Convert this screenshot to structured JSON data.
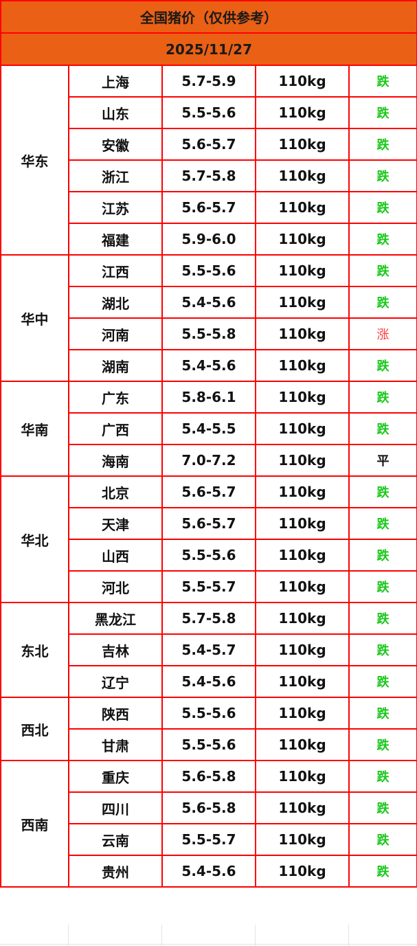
{
  "title": "全国猪价（仅供参考）",
  "date": "2025/11/27",
  "colors": {
    "header_bg": "#ea6014",
    "border": "#ff0000",
    "down": "#19c819",
    "up": "#ff3b3b"
  },
  "regions": [
    {
      "name": "华东",
      "rows": [
        {
          "province": "上海",
          "price": "5.7-5.9",
          "weight": "110kg",
          "trend": "跌"
        },
        {
          "province": "山东",
          "price": "5.5-5.6",
          "weight": "110kg",
          "trend": "跌"
        },
        {
          "province": "安徽",
          "price": "5.6-5.7",
          "weight": "110kg",
          "trend": "跌"
        },
        {
          "province": "浙江",
          "price": "5.7-5.8",
          "weight": "110kg",
          "trend": "跌"
        },
        {
          "province": "江苏",
          "price": "5.6-5.7",
          "weight": "110kg",
          "trend": "跌"
        },
        {
          "province": "福建",
          "price": "5.9-6.0",
          "weight": "110kg",
          "trend": "跌"
        }
      ]
    },
    {
      "name": "华中",
      "rows": [
        {
          "province": "江西",
          "price": "5.5-5.6",
          "weight": "110kg",
          "trend": "跌"
        },
        {
          "province": "湖北",
          "price": "5.4-5.6",
          "weight": "110kg",
          "trend": "跌"
        },
        {
          "province": "河南",
          "price": "5.5-5.8",
          "weight": "110kg",
          "trend": "涨"
        },
        {
          "province": "湖南",
          "price": "5.4-5.6",
          "weight": "110kg",
          "trend": "跌"
        }
      ]
    },
    {
      "name": "华南",
      "rows": [
        {
          "province": "广东",
          "price": "5.8-6.1",
          "weight": "110kg",
          "trend": "跌"
        },
        {
          "province": "广西",
          "price": "5.4-5.5",
          "weight": "110kg",
          "trend": "跌"
        },
        {
          "province": "海南",
          "price": "7.0-7.2",
          "weight": "110kg",
          "trend": "平"
        }
      ]
    },
    {
      "name": "华北",
      "rows": [
        {
          "province": "北京",
          "price": "5.6-5.7",
          "weight": "110kg",
          "trend": "跌"
        },
        {
          "province": "天津",
          "price": "5.6-5.7",
          "weight": "110kg",
          "trend": "跌"
        },
        {
          "province": "山西",
          "price": "5.5-5.6",
          "weight": "110kg",
          "trend": "跌"
        },
        {
          "province": "河北",
          "price": "5.5-5.7",
          "weight": "110kg",
          "trend": "跌"
        }
      ]
    },
    {
      "name": "东北",
      "rows": [
        {
          "province": "黑龙江",
          "price": "5.7-5.8",
          "weight": "110kg",
          "trend": "跌"
        },
        {
          "province": "吉林",
          "price": "5.4-5.7",
          "weight": "110kg",
          "trend": "跌"
        },
        {
          "province": "辽宁",
          "price": "5.4-5.6",
          "weight": "110kg",
          "trend": "跌"
        }
      ]
    },
    {
      "name": "西北",
      "rows": [
        {
          "province": "陕西",
          "price": "5.5-5.6",
          "weight": "110kg",
          "trend": "跌"
        },
        {
          "province": "甘肃",
          "price": "5.5-5.6",
          "weight": "110kg",
          "trend": "跌"
        }
      ]
    },
    {
      "name": "西南",
      "rows": [
        {
          "province": "重庆",
          "price": "5.6-5.8",
          "weight": "110kg",
          "trend": "跌"
        },
        {
          "province": "四川",
          "price": "5.6-5.8",
          "weight": "110kg",
          "trend": "跌"
        },
        {
          "province": "云南",
          "price": "5.5-5.7",
          "weight": "110kg",
          "trend": "跌"
        },
        {
          "province": "贵州",
          "price": "5.4-5.6",
          "weight": "110kg",
          "trend": "跌"
        }
      ]
    }
  ]
}
